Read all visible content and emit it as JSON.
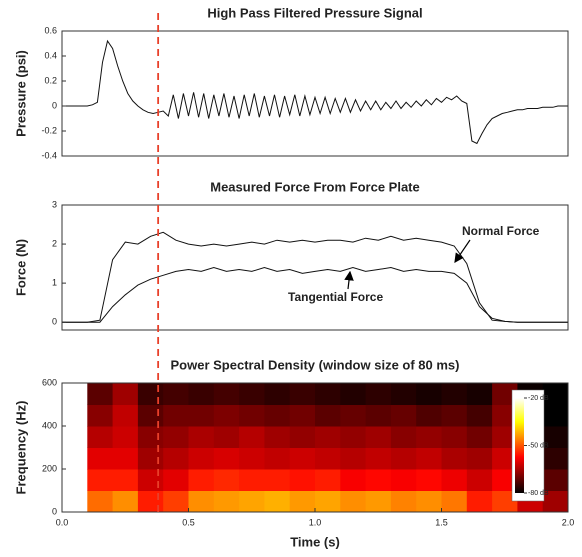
{
  "chart_data": [
    {
      "type": "line",
      "title": "High Pass Filtered Pressure Signal",
      "ylabel": "Pressure (psi)",
      "xlim": [
        0,
        2
      ],
      "ylim": [
        -0.4,
        0.6
      ],
      "yticks": [
        -0.4,
        -0.2,
        0,
        0.2,
        0.4,
        0.6
      ],
      "vline": {
        "x": 0.38,
        "color": "#e8402a"
      },
      "x": [
        0,
        0.02,
        0.04,
        0.06,
        0.08,
        0.1,
        0.12,
        0.14,
        0.16,
        0.18,
        0.2,
        0.22,
        0.24,
        0.26,
        0.28,
        0.3,
        0.32,
        0.34,
        0.36,
        0.38,
        0.4,
        0.42,
        0.44,
        0.46,
        0.48,
        0.5,
        0.52,
        0.54,
        0.56,
        0.58,
        0.6,
        0.62,
        0.64,
        0.66,
        0.68,
        0.7,
        0.72,
        0.74,
        0.76,
        0.78,
        0.8,
        0.82,
        0.84,
        0.86,
        0.88,
        0.9,
        0.92,
        0.94,
        0.96,
        0.98,
        1,
        1.02,
        1.04,
        1.06,
        1.08,
        1.1,
        1.12,
        1.14,
        1.16,
        1.18,
        1.2,
        1.22,
        1.24,
        1.26,
        1.28,
        1.3,
        1.32,
        1.34,
        1.36,
        1.38,
        1.4,
        1.42,
        1.44,
        1.46,
        1.48,
        1.5,
        1.52,
        1.54,
        1.56,
        1.58,
        1.6,
        1.62,
        1.64,
        1.66,
        1.68,
        1.7,
        1.72,
        1.74,
        1.76,
        1.78,
        1.8,
        1.82,
        1.84,
        1.86,
        1.88,
        1.9,
        1.92,
        1.94,
        1.96,
        1.98,
        2
      ],
      "series": [
        {
          "color": "#111111",
          "values": [
            0,
            0,
            0,
            0,
            0,
            0,
            0.01,
            0.03,
            0.35,
            0.52,
            0.46,
            0.32,
            0.2,
            0.1,
            0.04,
            0,
            -0.03,
            -0.05,
            -0.06,
            -0.05,
            -0.04,
            -0.08,
            0.09,
            -0.1,
            0.1,
            -0.08,
            0.11,
            -0.09,
            0.1,
            -0.1,
            0.09,
            -0.08,
            0.1,
            -0.09,
            0.08,
            -0.1,
            0.09,
            -0.08,
            0.1,
            -0.09,
            0.08,
            -0.08,
            0.09,
            -0.09,
            0.08,
            -0.07,
            0.09,
            -0.08,
            0.08,
            -0.07,
            0.07,
            -0.06,
            0.07,
            -0.06,
            0.06,
            -0.05,
            0.06,
            -0.05,
            0.05,
            -0.04,
            0.04,
            -0.03,
            0.04,
            -0.03,
            0.03,
            -0.02,
            0.04,
            -0.02,
            0.03,
            -0.01,
            0.04,
            0,
            0.05,
            0.01,
            0.06,
            0.03,
            0.07,
            0.05,
            0.08,
            0.04,
            0.02,
            -0.28,
            -0.3,
            -0.22,
            -0.15,
            -0.1,
            -0.08,
            -0.06,
            -0.05,
            -0.04,
            -0.03,
            -0.03,
            -0.02,
            -0.02,
            -0.02,
            -0.01,
            -0.01,
            -0.01,
            0,
            0,
            0
          ]
        }
      ]
    },
    {
      "type": "line",
      "title": "Measured Force From Force Plate",
      "ylabel": "Force (N)",
      "xlim": [
        0,
        2
      ],
      "ylim": [
        -0.2,
        3
      ],
      "yticks": [
        0,
        1,
        2,
        3
      ],
      "x": [
        0,
        0.05,
        0.1,
        0.15,
        0.2,
        0.25,
        0.3,
        0.35,
        0.4,
        0.45,
        0.5,
        0.55,
        0.6,
        0.65,
        0.7,
        0.75,
        0.8,
        0.85,
        0.9,
        0.95,
        1,
        1.05,
        1.1,
        1.15,
        1.2,
        1.25,
        1.3,
        1.35,
        1.4,
        1.45,
        1.5,
        1.55,
        1.6,
        1.65,
        1.7,
        1.75,
        1.8,
        1.85,
        1.9,
        1.95,
        2
      ],
      "series": [
        {
          "name": "Normal Force",
          "color": "#111111",
          "values": [
            0,
            0,
            0,
            0.05,
            1.6,
            2.05,
            2.0,
            2.2,
            2.3,
            2.1,
            2.0,
            1.95,
            2.0,
            1.95,
            2.0,
            2.05,
            2.0,
            2.1,
            2.05,
            2.1,
            2.05,
            2.1,
            2.1,
            2.05,
            2.15,
            2.1,
            2.2,
            2.1,
            2.15,
            2.1,
            2.05,
            1.95,
            1.5,
            0.5,
            0.05,
            0.02,
            0,
            0,
            0,
            0,
            0
          ]
        },
        {
          "name": "Tangential Force",
          "color": "#111111",
          "values": [
            0,
            0,
            0,
            0,
            0.4,
            0.7,
            0.95,
            1.1,
            1.2,
            1.3,
            1.35,
            1.3,
            1.4,
            1.3,
            1.35,
            1.3,
            1.4,
            1.3,
            1.35,
            1.25,
            1.3,
            1.35,
            1.3,
            1.4,
            1.3,
            1.35,
            1.4,
            1.3,
            1.35,
            1.3,
            1.3,
            1.25,
            1.0,
            0.4,
            0.1,
            0.02,
            0,
            0,
            0,
            0,
            0
          ]
        }
      ]
    },
    {
      "type": "heatmap",
      "title": "Power Spectral Density (window size of 80 ms)",
      "ylabel": "Frequency (Hz)",
      "xlabel": "Time (s)",
      "xlim": [
        0,
        2
      ],
      "xticks": [
        {
          "value": 0,
          "label": "0.0"
        },
        0.5,
        {
          "value": 1,
          "label": "1.0"
        },
        1.5,
        {
          "value": 2,
          "label": "2.0"
        }
      ],
      "ylim": [
        0,
        600
      ],
      "yticks": [
        0,
        200,
        400,
        600
      ],
      "x": [
        0.15,
        0.25,
        0.35,
        0.45,
        0.55,
        0.65,
        0.75,
        0.85,
        0.95,
        1.05,
        1.15,
        1.25,
        1.35,
        1.45,
        1.55,
        1.65,
        1.75,
        1.85,
        1.95
      ],
      "y": [
        50,
        150,
        250,
        350,
        450,
        550
      ],
      "z": [
        [
          -48,
          -45,
          -55,
          -52,
          -45,
          -44,
          -43,
          -42,
          -44,
          -43,
          -45,
          -44,
          -46,
          -45,
          -47,
          -55,
          -52,
          -62,
          -66
        ],
        [
          -55,
          -55,
          -62,
          -60,
          -55,
          -54,
          -55,
          -55,
          -56,
          -55,
          -58,
          -57,
          -58,
          -57,
          -59,
          -62,
          -58,
          -68,
          -72
        ],
        [
          -60,
          -60,
          -66,
          -64,
          -62,
          -61,
          -62,
          -63,
          -62,
          -63,
          -64,
          -63,
          -64,
          -63,
          -65,
          -66,
          -62,
          -72,
          -76
        ],
        [
          -64,
          -62,
          -68,
          -67,
          -65,
          -66,
          -64,
          -66,
          -67,
          -66,
          -67,
          -66,
          -68,
          -67,
          -68,
          -70,
          -66,
          -75,
          -78
        ],
        [
          -68,
          -63,
          -72,
          -70,
          -70,
          -69,
          -70,
          -71,
          -70,
          -72,
          -71,
          -72,
          -71,
          -73,
          -72,
          -74,
          -68,
          -78,
          -80
        ],
        [
          -72,
          -66,
          -75,
          -74,
          -75,
          -74,
          -75,
          -76,
          -75,
          -76,
          -77,
          -76,
          -77,
          -78,
          -77,
          -78,
          -70,
          -79,
          -80
        ]
      ],
      "colormap": "hot",
      "clim": [
        -80,
        -20
      ],
      "colorbar_ticks": [
        {
          "value": -20,
          "label": "-20 dB"
        },
        {
          "value": -50,
          "label": "-50 dB"
        },
        {
          "value": -80,
          "label": "-80 dB"
        }
      ]
    }
  ]
}
